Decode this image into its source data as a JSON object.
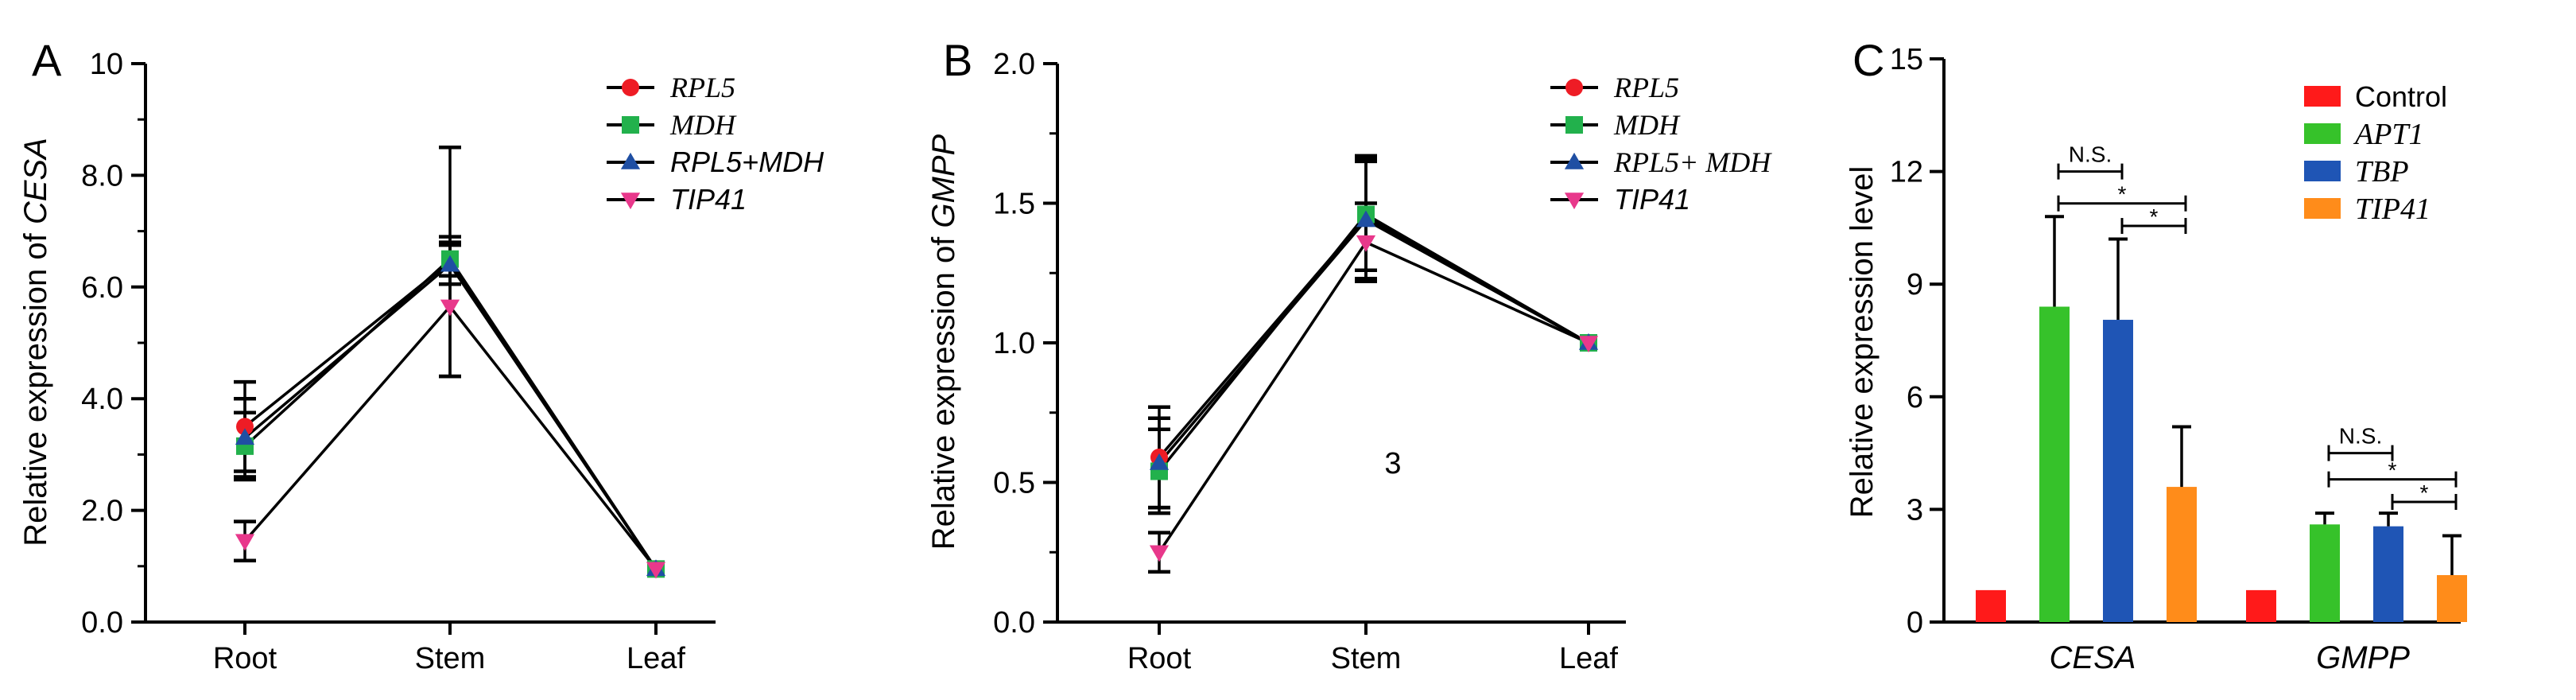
{
  "colors": {
    "axis": "#000000",
    "RPL5": "#ee1c25",
    "MDH": "#22b14c",
    "RPL5+MDH": "#1f4fa3",
    "TIP41": "#e8388b",
    "Control": "#ff1a1a",
    "APT1": "#36c22a",
    "TBP": "#1f55b5",
    "TIP41_bar": "#ff8c1a"
  },
  "chart_data": [
    {
      "panel": "A",
      "type": "line",
      "ylabel_prefix": "Relative expression of",
      "ylabel_gene": "CESA",
      "ylim": [
        0,
        10
      ],
      "yticks": [
        "0.0",
        "2.0",
        "4.0",
        "6.0",
        "8.0",
        "10"
      ],
      "categories": [
        "Root",
        "Stem",
        "Leaf"
      ],
      "series": [
        {
          "name": "RPL5",
          "marker": "circle",
          "italic_serif": true,
          "values": [
            3.5,
            6.45,
            0.95
          ],
          "errors": [
            0.8,
            2.05,
            0
          ]
        },
        {
          "name": "MDH",
          "marker": "square",
          "italic_serif": true,
          "values": [
            3.15,
            6.5,
            0.95
          ],
          "errors": [
            0.6,
            0.3,
            0
          ]
        },
        {
          "name": "RPL5+MDH",
          "marker": "triangle",
          "italic_serif": false,
          "values": [
            3.3,
            6.4,
            0.95
          ],
          "errors": [
            0.7,
            0.35,
            0
          ]
        },
        {
          "name": "TIP41",
          "marker": "triangle-down",
          "italic_serif": false,
          "values": [
            1.45,
            5.65,
            0.95
          ],
          "errors": [
            0.35,
            1.25,
            0
          ]
        }
      ]
    },
    {
      "panel": "B",
      "type": "line",
      "ylabel_prefix": "Relative expression of",
      "ylabel_gene": "GMPP",
      "ylim": [
        0,
        2.0
      ],
      "yticks": [
        "0.0",
        "0.5",
        "1.0",
        "1.5",
        "2.0"
      ],
      "categories": [
        "Root",
        "Stem",
        "Leaf"
      ],
      "annotation": "3",
      "series": [
        {
          "name": "RPL5",
          "marker": "circle",
          "italic_serif": true,
          "values": [
            0.59,
            1.45,
            1.0
          ],
          "errors": [
            0.18,
            0.22,
            0
          ]
        },
        {
          "name": "MDH",
          "marker": "square",
          "italic_serif": true,
          "values": [
            0.54,
            1.46,
            1.0
          ],
          "errors": [
            0.15,
            0.2,
            0
          ]
        },
        {
          "name": "RPL5+ MDH",
          "marker": "triangle",
          "italic_serif": true,
          "values": [
            0.57,
            1.44,
            1.0
          ],
          "errors": [
            0.16,
            0.21,
            0
          ]
        },
        {
          "name": "TIP41",
          "marker": "triangle-down",
          "italic_serif": false,
          "values": [
            0.25,
            1.36,
            1.0
          ],
          "errors": [
            0.07,
            0.14,
            0
          ]
        }
      ]
    },
    {
      "panel": "C",
      "type": "bar",
      "ylabel": "Relative expression level",
      "ylim": [
        0,
        15
      ],
      "yticks": [
        "0",
        "3",
        "6",
        "9",
        "12",
        "15"
      ],
      "categories": [
        "CESA",
        "GMPP"
      ],
      "series": [
        {
          "name": "Control",
          "italic_serif": false,
          "values": [
            0.85,
            0.85
          ],
          "errors": [
            0,
            0
          ]
        },
        {
          "name": "APT1",
          "italic_serif": true,
          "values": [
            8.4,
            2.6
          ],
          "errors": [
            2.4,
            0.3
          ]
        },
        {
          "name": "TBP",
          "italic_serif": true,
          "values": [
            8.05,
            2.55
          ],
          "errors": [
            2.15,
            0.35
          ]
        },
        {
          "name": "TIP41",
          "italic_serif": true,
          "values": [
            3.6,
            1.25
          ],
          "errors": [
            1.6,
            1.05
          ]
        }
      ],
      "significance": [
        {
          "category": 0,
          "from": 1,
          "to": 2,
          "label": "N.S.",
          "y": 12.0
        },
        {
          "category": 0,
          "from": 1,
          "to": 3,
          "label": "*",
          "y": 11.15
        },
        {
          "category": 0,
          "from": 2,
          "to": 3,
          "label": "*",
          "y": 10.55
        },
        {
          "category": 1,
          "from": 1,
          "to": 2,
          "label": "N.S.",
          "y": 4.5
        },
        {
          "category": 1,
          "from": 1,
          "to": 3,
          "label": "*",
          "y": 3.8
        },
        {
          "category": 1,
          "from": 2,
          "to": 3,
          "label": "*",
          "y": 3.2
        }
      ]
    }
  ]
}
